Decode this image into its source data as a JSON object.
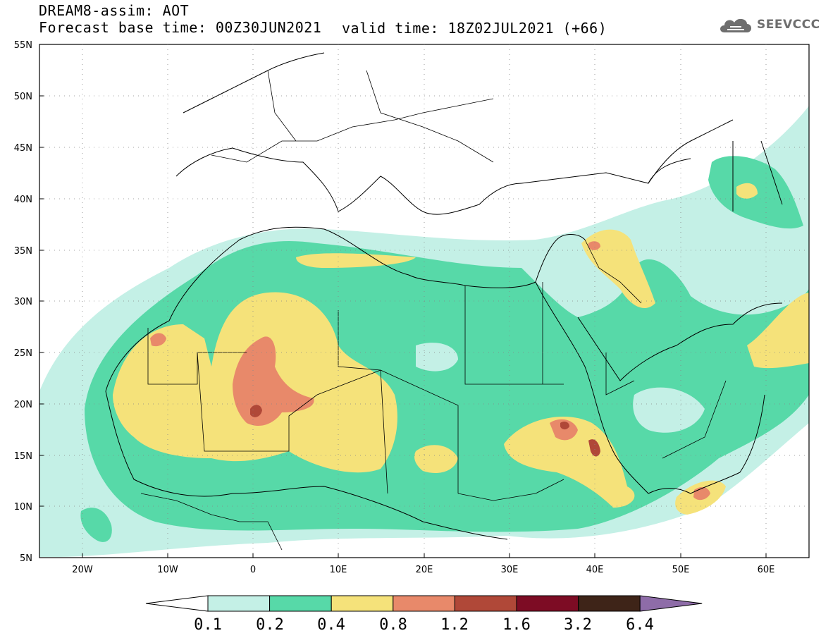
{
  "header": {
    "title_line1": "DREAM8-assim: AOT",
    "title_line2": "Forecast base time: 00Z30JUN2021",
    "valid_time": "valid time: 18Z02JUL2021 (+66)",
    "logo_text": "SEEVCCC"
  },
  "map": {
    "lon_range": [
      -25,
      65
    ],
    "lat_range": [
      5,
      55
    ],
    "lon_ticks": [
      "20W",
      "10W",
      "0",
      "10E",
      "20E",
      "30E",
      "40E",
      "50E",
      "60E"
    ],
    "lat_ticks": [
      "55N",
      "50N",
      "45N",
      "40N",
      "35N",
      "30N",
      "25N",
      "20N",
      "15N",
      "10N",
      "5N"
    ],
    "grid": "dotted"
  },
  "colorbar": {
    "labels": [
      "0.1",
      "0.2",
      "0.4",
      "0.8",
      "1.2",
      "1.6",
      "3.2",
      "6.4"
    ],
    "colors": [
      "#ffffff",
      "#c4f0e6",
      "#57d9a8",
      "#f5e27a",
      "#e8896a",
      "#b04838",
      "#7d0c24",
      "#3e2418",
      "#8e6ca8"
    ]
  }
}
